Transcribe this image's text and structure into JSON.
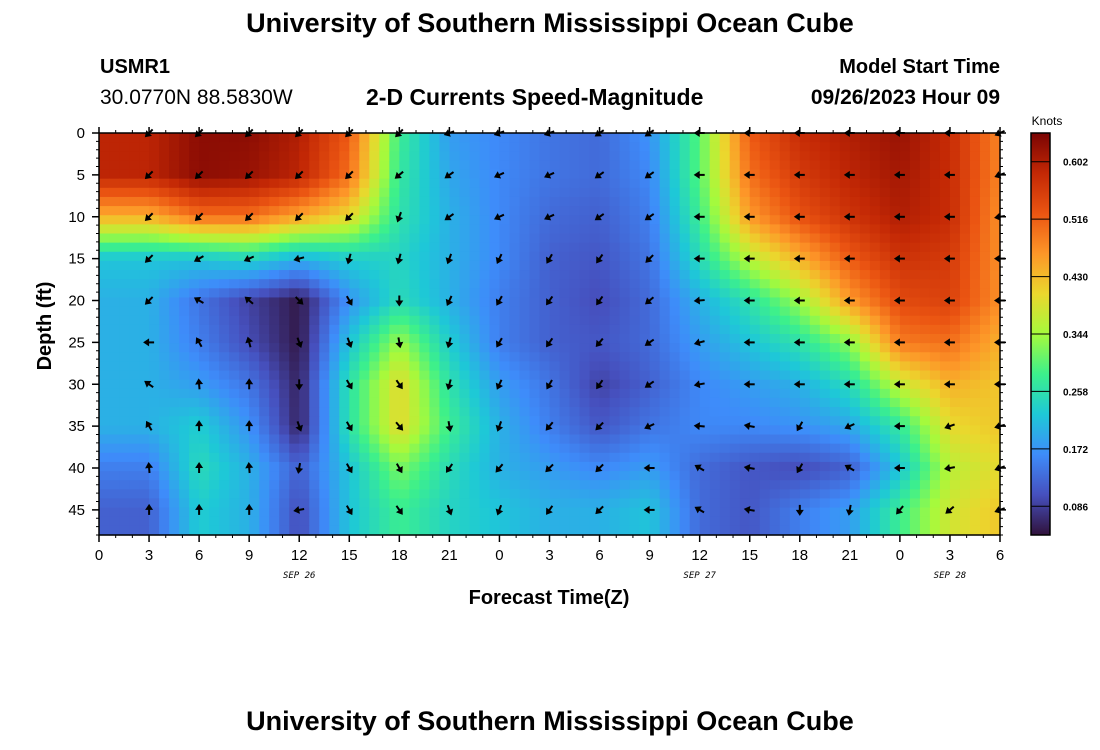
{
  "header": {
    "title": "University of Southern Mississippi Ocean Cube",
    "station_id": "USMR1",
    "coordinates": "30.0770N  88.5830W",
    "model_start_label": "Model Start Time",
    "model_start_value": "09/26/2023 Hour 09"
  },
  "footer": {
    "title": "University of Southern Mississippi Ocean Cube"
  },
  "chart_data": {
    "type": "heatmap",
    "title": "2-D Currents Speed-Magnitude",
    "xlabel": "Forecast Time(Z)",
    "ylabel": "Depth (ft)",
    "x_tick_labels": [
      "0",
      "3",
      "6",
      "9",
      "12",
      "15",
      "18",
      "21",
      "0",
      "3",
      "6",
      "9",
      "12",
      "15",
      "18",
      "21",
      "0",
      "3",
      "6"
    ],
    "x_date_labels": [
      {
        "label": "SEP 26",
        "at_tick": 4
      },
      {
        "label": "SEP 27",
        "at_tick": 12
      },
      {
        "label": "SEP 28",
        "at_tick": 17
      }
    ],
    "y_tick_labels": [
      "0",
      "5",
      "10",
      "15",
      "20",
      "25",
      "30",
      "35",
      "40",
      "45"
    ],
    "ylim": [
      0,
      48
    ],
    "y_reversed": true,
    "colorbar": {
      "title": "Knots",
      "tick_labels": [
        "0.602",
        "0.516",
        "0.430",
        "0.344",
        "0.258",
        "0.172",
        "0.086"
      ],
      "range": [
        0.043,
        0.645
      ]
    },
    "times": [
      3,
      6,
      9,
      12,
      15,
      18,
      21,
      24,
      27,
      30,
      33,
      36,
      39,
      42,
      45,
      48,
      51,
      54
    ],
    "depths": [
      0,
      5,
      10,
      15,
      20,
      25,
      30,
      35,
      40,
      45
    ],
    "speed": [
      [
        0.59,
        0.63,
        0.63,
        0.6,
        0.52,
        0.28,
        0.18,
        0.16,
        0.14,
        0.13,
        0.17,
        0.3,
        0.52,
        0.58,
        0.6,
        0.62,
        0.58,
        0.48
      ],
      [
        0.59,
        0.63,
        0.62,
        0.59,
        0.5,
        0.27,
        0.19,
        0.16,
        0.14,
        0.13,
        0.16,
        0.3,
        0.5,
        0.56,
        0.59,
        0.61,
        0.58,
        0.48
      ],
      [
        0.44,
        0.5,
        0.5,
        0.45,
        0.4,
        0.26,
        0.2,
        0.16,
        0.13,
        0.12,
        0.15,
        0.28,
        0.46,
        0.53,
        0.57,
        0.6,
        0.58,
        0.47
      ],
      [
        0.22,
        0.22,
        0.24,
        0.2,
        0.23,
        0.24,
        0.2,
        0.16,
        0.12,
        0.11,
        0.14,
        0.25,
        0.36,
        0.44,
        0.52,
        0.57,
        0.56,
        0.47
      ],
      [
        0.2,
        0.14,
        0.09,
        0.05,
        0.17,
        0.25,
        0.2,
        0.15,
        0.12,
        0.1,
        0.13,
        0.2,
        0.26,
        0.34,
        0.46,
        0.54,
        0.55,
        0.47
      ],
      [
        0.2,
        0.15,
        0.1,
        0.05,
        0.22,
        0.34,
        0.23,
        0.15,
        0.12,
        0.11,
        0.13,
        0.18,
        0.22,
        0.26,
        0.33,
        0.49,
        0.5,
        0.44
      ],
      [
        0.2,
        0.18,
        0.14,
        0.06,
        0.26,
        0.4,
        0.26,
        0.18,
        0.14,
        0.09,
        0.12,
        0.16,
        0.18,
        0.2,
        0.25,
        0.37,
        0.44,
        0.42
      ],
      [
        0.2,
        0.23,
        0.17,
        0.06,
        0.26,
        0.4,
        0.28,
        0.2,
        0.15,
        0.11,
        0.14,
        0.16,
        0.16,
        0.17,
        0.19,
        0.27,
        0.4,
        0.42
      ],
      [
        0.15,
        0.25,
        0.2,
        0.12,
        0.22,
        0.32,
        0.25,
        0.2,
        0.18,
        0.16,
        0.18,
        0.13,
        0.11,
        0.1,
        0.12,
        0.22,
        0.36,
        0.4
      ],
      [
        0.12,
        0.23,
        0.2,
        0.1,
        0.22,
        0.28,
        0.24,
        0.22,
        0.2,
        0.2,
        0.22,
        0.13,
        0.11,
        0.15,
        0.18,
        0.28,
        0.38,
        0.42
      ]
    ],
    "direction_deg": [
      [
        225,
        225,
        225,
        225,
        225,
        225,
        250,
        250,
        250,
        235,
        235,
        270,
        270,
        270,
        270,
        270,
        270,
        245
      ],
      [
        225,
        225,
        225,
        225,
        225,
        230,
        235,
        245,
        245,
        235,
        235,
        270,
        270,
        270,
        270,
        270,
        270,
        250
      ],
      [
        225,
        225,
        225,
        225,
        225,
        200,
        235,
        245,
        245,
        235,
        235,
        270,
        270,
        270,
        270,
        270,
        270,
        260
      ],
      [
        225,
        240,
        245,
        255,
        195,
        195,
        200,
        205,
        210,
        215,
        225,
        270,
        270,
        270,
        270,
        270,
        270,
        270
      ],
      [
        225,
        300,
        310,
        135,
        150,
        180,
        205,
        210,
        215,
        215,
        230,
        265,
        270,
        270,
        270,
        270,
        270,
        270
      ],
      [
        270,
        330,
        345,
        160,
        160,
        170,
        195,
        210,
        215,
        220,
        235,
        255,
        270,
        270,
        270,
        270,
        270,
        270
      ],
      [
        305,
        355,
        0,
        180,
        150,
        145,
        195,
        205,
        210,
        215,
        235,
        260,
        270,
        270,
        270,
        270,
        270,
        270
      ],
      [
        330,
        0,
        0,
        160,
        150,
        140,
        170,
        200,
        220,
        225,
        245,
        275,
        280,
        210,
        245,
        270,
        250,
        255
      ],
      [
        355,
        0,
        355,
        190,
        150,
        150,
        215,
        220,
        225,
        225,
        270,
        300,
        280,
        210,
        300,
        270,
        260,
        250
      ],
      [
        0,
        0,
        0,
        260,
        150,
        145,
        160,
        200,
        215,
        225,
        270,
        300,
        280,
        180,
        190,
        220,
        230,
        250
      ]
    ]
  }
}
